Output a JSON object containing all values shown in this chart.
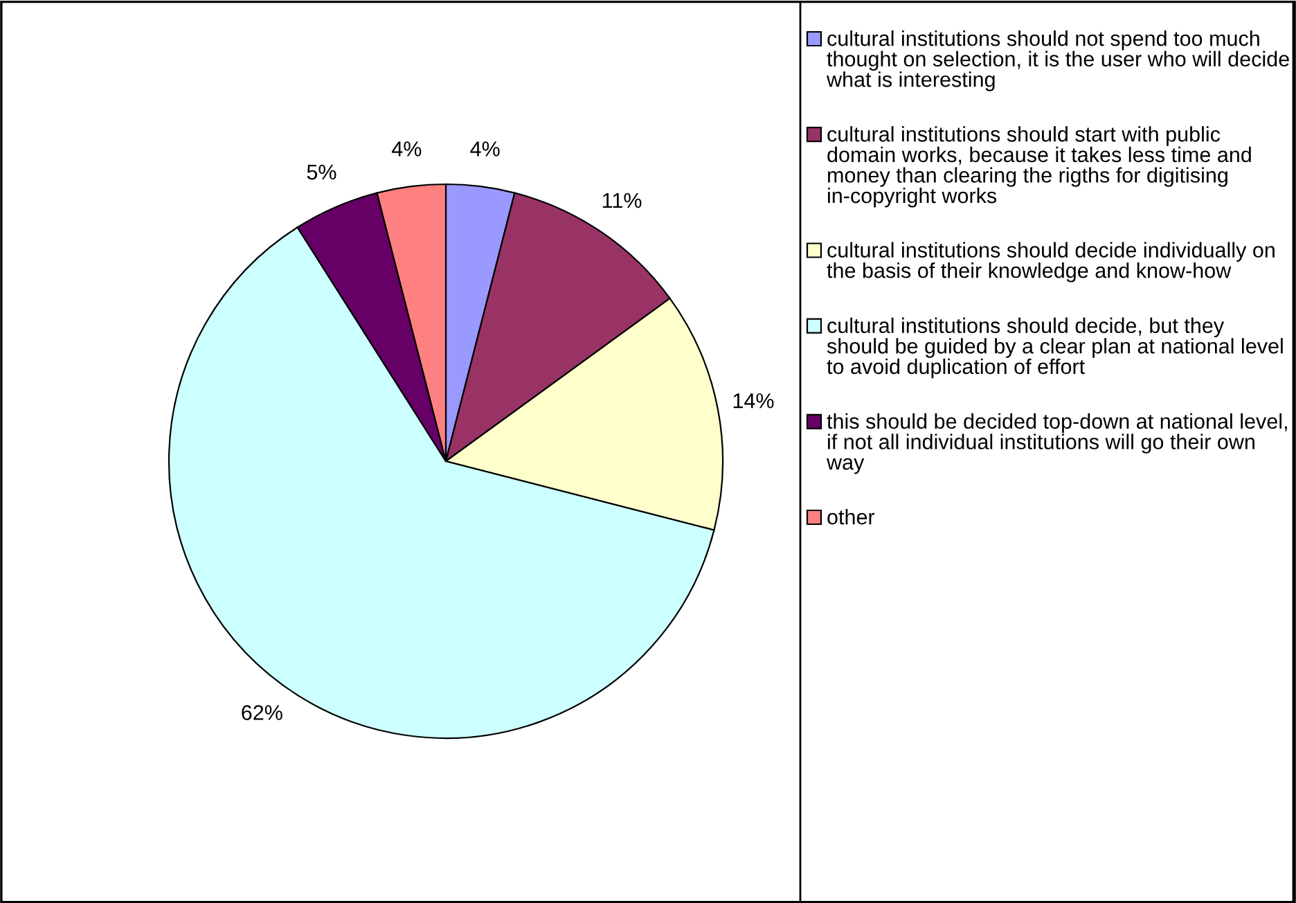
{
  "chart_data": {
    "type": "pie",
    "categories": [
      "cultural institutions should not spend too much thought on selection, it is the user who will decide what is interesting",
      "cultural institutions should start with public domain works, because it takes less time and money than clearing the rigths for digitising in-copyright works",
      "cultural institutions should decide individually on the basis of their knowledge and know-how",
      "cultural institutions should decide, but they should be guided by a clear plan at national level to avoid duplication of effort",
      "this should be decided top-down at national level, if not all individual institutions will go their own way",
      "other"
    ],
    "values": [
      4,
      11,
      14,
      62,
      5,
      4
    ],
    "value_labels": [
      "4%",
      "11%",
      "14%",
      "62%",
      "5%",
      "4%"
    ],
    "colors": [
      "#9999ff",
      "#993366",
      "#ffffcc",
      "#ccffff",
      "#660066",
      "#ff8080"
    ],
    "legend": "right"
  }
}
